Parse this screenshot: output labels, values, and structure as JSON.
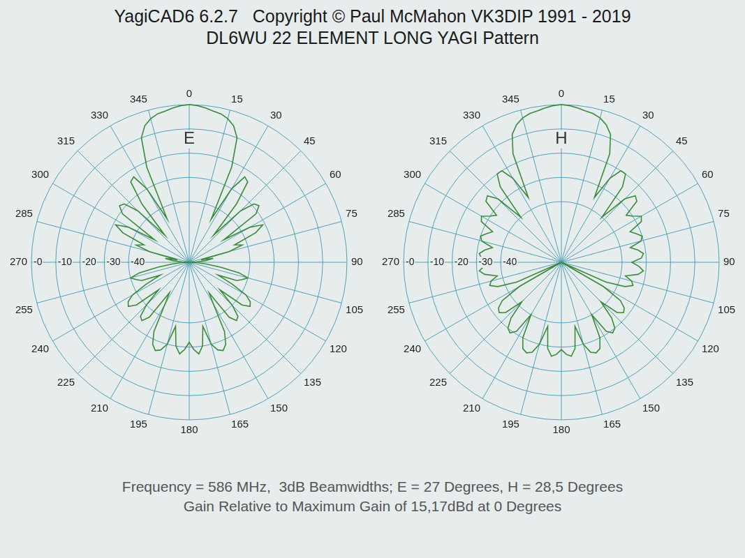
{
  "title": [
    "YagiCAD6 6.2.7   Copyright © Paul McMahon VK3DIP 1991 - 2019",
    "DL6WU 22 ELEMENT LONG YAGI Pattern"
  ],
  "footer": [
    "Frequency = 586 MHz,  3dB Beamwidths; E = 27 Degrees, H = 28,5 Degrees",
    "Gain Relative to Maximum Gain of 15,17dBd at 0 Degrees"
  ],
  "chart_data": [
    {
      "type": "radar",
      "title": "E",
      "color": "#3a8a3a",
      "grid": true,
      "ylim": [
        -65,
        0
      ],
      "yticks": [
        -40,
        -30,
        -20,
        -10,
        {
          "value": 0,
          "label": "-0"
        }
      ],
      "categories": [
        "0",
        null,
        null,
        null,
        null,
        "15",
        null,
        null,
        null,
        null,
        "30",
        null,
        null,
        null,
        null,
        "45",
        null,
        null,
        null,
        null,
        "60",
        null,
        null,
        null,
        null,
        "75",
        null,
        null,
        null,
        null,
        "90",
        null,
        null,
        null,
        null,
        "105",
        null,
        null,
        null,
        null,
        "120",
        null,
        null,
        null,
        null,
        "135",
        null,
        null,
        null,
        null,
        "150",
        null,
        null,
        null,
        null,
        "165",
        null,
        null,
        null,
        null,
        "180",
        null,
        null,
        null,
        null,
        "195",
        null,
        null,
        null,
        null,
        "210",
        null,
        null,
        null,
        null,
        "225",
        null,
        null,
        null,
        null,
        "240",
        null,
        null,
        null,
        null,
        "255",
        null,
        null,
        null,
        null,
        "270",
        null,
        null,
        null,
        null,
        "285",
        null,
        null,
        null,
        null,
        "300",
        null,
        null,
        null,
        null,
        "315",
        null,
        null,
        null,
        null,
        "330",
        null,
        null,
        null,
        null,
        "345",
        null,
        null,
        null,
        null
      ],
      "values": [
        0,
        -0.3,
        -1,
        -1.9,
        -2.4,
        -3.7,
        -5.8,
        -10,
        -22,
        -45,
        -30,
        -23,
        -24,
        -34,
        -50,
        -35,
        -29,
        -28,
        -31,
        -48,
        -36,
        -31,
        -35,
        -45,
        -42,
        -48,
        -60,
        -55,
        -58,
        -62,
        -65,
        -62,
        -58,
        -52,
        -44,
        -40,
        -42,
        -44,
        -52,
        -45,
        -38,
        -35,
        -34,
        -37,
        -48,
        -40,
        -35,
        -34,
        -37,
        -50,
        -45,
        -33,
        -28,
        -26,
        -27,
        -30,
        -38,
        -30,
        -27,
        -29,
        -32,
        -29,
        -27,
        -30,
        -38,
        -30,
        -27,
        -26,
        -28,
        -33,
        -45,
        -50,
        -37,
        -34,
        -35,
        -40,
        -48,
        -37,
        -34,
        -35,
        -38,
        -45,
        -52,
        -44,
        -42,
        -40,
        -44,
        -52,
        -58,
        -62,
        -65,
        -62,
        -58,
        -55,
        -60,
        -48,
        -42,
        -45,
        -35,
        -31,
        -36,
        -48,
        -31,
        -28,
        -29,
        -35,
        -50,
        -34,
        -24,
        -23,
        -30,
        -45,
        -22,
        -10,
        -5.8,
        -3.7,
        -2.4,
        -1.9,
        -1,
        -0.3
      ]
    },
    {
      "type": "radar",
      "title": "H",
      "color": "#3a8a3a",
      "grid": true,
      "ylim": [
        -65,
        0
      ],
      "yticks": [
        -40,
        -30,
        -20,
        -10,
        {
          "value": 0,
          "label": "-0"
        }
      ],
      "categories": [
        "0",
        null,
        null,
        null,
        null,
        "15",
        null,
        null,
        null,
        null,
        "30",
        null,
        null,
        null,
        null,
        "45",
        null,
        null,
        null,
        null,
        "60",
        null,
        null,
        null,
        null,
        "75",
        null,
        null,
        null,
        null,
        "90",
        null,
        null,
        null,
        null,
        "105",
        null,
        null,
        null,
        null,
        "120",
        null,
        null,
        null,
        null,
        "135",
        null,
        null,
        null,
        null,
        "150",
        null,
        null,
        null,
        null,
        "165",
        null,
        null,
        null,
        null,
        "180",
        null,
        null,
        null,
        null,
        "195",
        null,
        null,
        null,
        null,
        "210",
        null,
        null,
        null,
        null,
        "225",
        null,
        null,
        null,
        null,
        "240",
        null,
        null,
        null,
        null,
        "255",
        null,
        null,
        null,
        null,
        "270",
        null,
        null,
        null,
        null,
        "285",
        null,
        null,
        null,
        null,
        "300",
        null,
        null,
        null,
        null,
        "315",
        null,
        null,
        null,
        null,
        "330",
        null,
        null,
        null,
        null,
        "345",
        null,
        null,
        null,
        null
      ],
      "values": [
        0,
        -0.3,
        -1,
        -1.8,
        -2.3,
        -3.4,
        -5.3,
        -8.5,
        -16,
        -35,
        -25,
        -20,
        -20,
        -25,
        -40,
        -28,
        -24,
        -25,
        -32,
        -30,
        -27,
        -28,
        -34,
        -32,
        -30,
        -31,
        -36,
        -33,
        -31,
        -32,
        -36,
        -33,
        -31,
        -33,
        -38,
        -35,
        -34,
        -37,
        -45,
        -65,
        -45,
        -36,
        -33,
        -32,
        -34,
        -42,
        -34,
        -30,
        -29,
        -31,
        -40,
        -30,
        -26,
        -25,
        -26,
        -30,
        -38,
        -29,
        -26,
        -27,
        -29,
        -27,
        -26,
        -29,
        -38,
        -30,
        -26,
        -25,
        -26,
        -30,
        -40,
        -31,
        -29,
        -30,
        -34,
        -42,
        -34,
        -32,
        -33,
        -36,
        -45,
        -65,
        -45,
        -37,
        -34,
        -35,
        -38,
        -33,
        -31,
        -33,
        -36,
        -32,
        -31,
        -33,
        -36,
        -31,
        -30,
        -32,
        -34,
        -28,
        -27,
        -30,
        -32,
        -25,
        -24,
        -28,
        -40,
        -25,
        -20,
        -20,
        -25,
        -35,
        -16,
        -8.5,
        -5.3,
        -3.4,
        -2.3,
        -1.8,
        -1,
        -0.3
      ]
    }
  ]
}
